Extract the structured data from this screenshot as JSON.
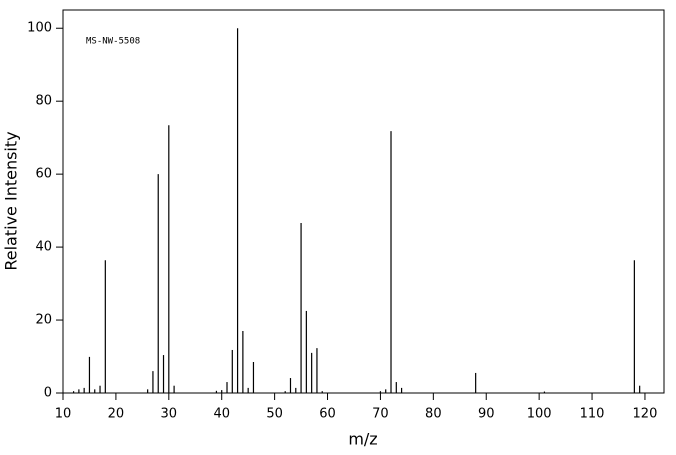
{
  "chart_data": {
    "type": "stem",
    "annotation": "MS-NW-5508",
    "x_label": "m/z",
    "y_label": "Relative Intensity",
    "color": "#000000",
    "x": [
      12,
      13,
      14,
      15,
      16,
      17,
      18,
      26,
      27,
      28,
      29,
      30,
      31,
      39,
      40,
      41,
      42,
      43,
      44,
      45,
      46,
      52,
      53,
      54,
      55,
      56,
      57,
      58,
      59,
      70,
      71,
      72,
      73,
      74,
      88,
      101,
      118,
      119
    ],
    "values": [
      0.5,
      1,
      1.4,
      9.9,
      1,
      2,
      36.4,
      1,
      6,
      60,
      10.4,
      73.4,
      2,
      0.6,
      0.8,
      3,
      11.8,
      100,
      17,
      1.4,
      8.5,
      0.5,
      4.1,
      1.4,
      46.6,
      22.5,
      11,
      12.3,
      0.5,
      0.5,
      1,
      71.8,
      3,
      1.4,
      5.5,
      0.4,
      36.4,
      2
    ],
    "xlim": [
      10,
      123.6
    ],
    "ylim": [
      0,
      105
    ],
    "xticks": [
      10,
      20,
      30,
      40,
      50,
      60,
      70,
      80,
      90,
      100,
      110,
      120
    ],
    "yticks": [
      0,
      20,
      40,
      60,
      80,
      100
    ]
  }
}
